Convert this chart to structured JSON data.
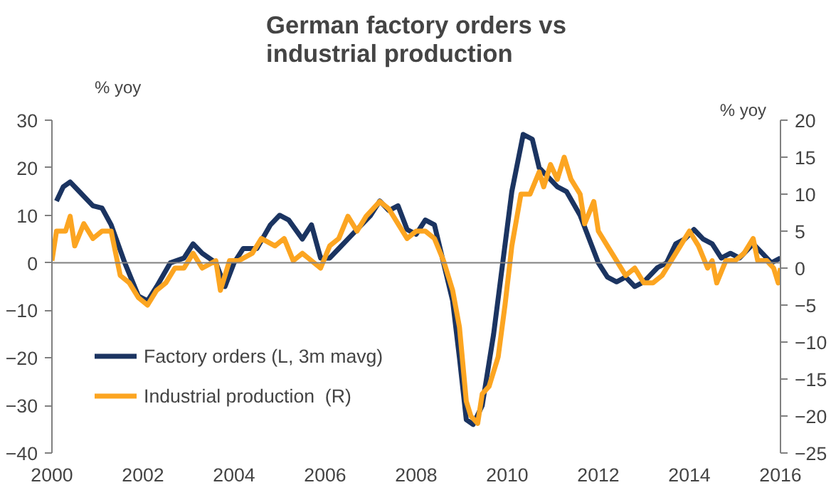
{
  "chart_data": {
    "type": "line",
    "title": "German factory orders vs\nindustrial production",
    "ylabel": "% yoy",
    "y2label": "% yoy",
    "xlim": [
      2000,
      2016
    ],
    "xticks": [
      2000,
      2002,
      2004,
      2006,
      2008,
      2010,
      2012,
      2014,
      2016
    ],
    "ylim": [
      -40,
      30
    ],
    "yticks": [
      -40,
      -30,
      -20,
      -10,
      0,
      10,
      20,
      30
    ],
    "y2lim": [
      -25,
      20
    ],
    "y2ticks": [
      -25,
      -20,
      -15,
      -10,
      -5,
      0,
      5,
      10,
      15,
      20
    ],
    "grid": false,
    "legend": "bottom left",
    "line_style": "solid",
    "marker": "none",
    "ref_lines": [
      {
        "axis": "y",
        "value": 0,
        "color": "#808080"
      }
    ],
    "series": [
      {
        "name": "Factory orders (L, 3m mavg)",
        "color": "#1b3461",
        "x": [
          2000.1,
          2000.25,
          2000.4,
          2000.6,
          2000.9,
          2001.1,
          2001.3,
          2001.6,
          2001.9,
          2002.1,
          2002.3,
          2002.6,
          2002.9,
          2003.1,
          2003.3,
          2003.6,
          2003.8,
          2004.0,
          2004.2,
          2004.5,
          2004.8,
          2005.0,
          2005.2,
          2005.5,
          2005.7,
          2005.9,
          2006.1,
          2006.3,
          2006.5,
          2006.8,
          2007.0,
          2007.2,
          2007.4,
          2007.6,
          2007.8,
          2008.0,
          2008.2,
          2008.4,
          2008.6,
          2008.8,
          2008.95,
          2009.1,
          2009.25,
          2009.45,
          2009.7,
          2009.9,
          2010.1,
          2010.35,
          2010.55,
          2010.7,
          2010.9,
          2011.1,
          2011.3,
          2011.6,
          2011.8,
          2012.0,
          2012.2,
          2012.4,
          2012.6,
          2012.8,
          2013.0,
          2013.3,
          2013.5,
          2013.7,
          2013.9,
          2014.1,
          2014.3,
          2014.5,
          2014.7,
          2014.9,
          2015.1,
          2015.4,
          2015.6,
          2015.8,
          2016.0
        ],
        "values": [
          13,
          16,
          17,
          15,
          12,
          11.5,
          8,
          0,
          -7,
          -8,
          -5,
          0,
          1,
          4,
          2,
          0,
          -5,
          0,
          3,
          3,
          8,
          10,
          9,
          5,
          8,
          1,
          1,
          3,
          5,
          8,
          10,
          13,
          11,
          12,
          7,
          6,
          9,
          8,
          0,
          -8,
          -20,
          -33,
          -34,
          -30,
          -15,
          0,
          15,
          27,
          26,
          20,
          18,
          16,
          15,
          10,
          5,
          0,
          -3,
          -4,
          -3,
          -5,
          -4,
          -1,
          0,
          4,
          5,
          7,
          5,
          4,
          1,
          2,
          1,
          4,
          2,
          0,
          1
        ]
      },
      {
        "name": "Industrial production  (R)",
        "color": "#fca521",
        "axis": "y2",
        "x": [
          2000.0,
          2000.1,
          2000.3,
          2000.4,
          2000.5,
          2000.7,
          2000.9,
          2001.1,
          2001.3,
          2001.5,
          2001.7,
          2001.9,
          2002.1,
          2002.3,
          2002.5,
          2002.7,
          2002.9,
          2003.1,
          2003.3,
          2003.6,
          2003.7,
          2003.9,
          2004.1,
          2004.4,
          2004.6,
          2004.9,
          2005.1,
          2005.3,
          2005.5,
          2005.7,
          2005.9,
          2006.1,
          2006.3,
          2006.5,
          2006.7,
          2006.9,
          2007.2,
          2007.4,
          2007.6,
          2007.8,
          2008.0,
          2008.2,
          2008.4,
          2008.6,
          2008.8,
          2008.95,
          2009.1,
          2009.2,
          2009.35,
          2009.45,
          2009.6,
          2009.8,
          2009.95,
          2010.1,
          2010.3,
          2010.5,
          2010.7,
          2010.8,
          2010.95,
          2011.1,
          2011.25,
          2011.4,
          2011.6,
          2011.7,
          2011.9,
          2012.0,
          2012.2,
          2012.4,
          2012.6,
          2012.8,
          2013.0,
          2013.2,
          2013.4,
          2013.6,
          2013.8,
          2013.9,
          2014.0,
          2014.2,
          2014.4,
          2014.5,
          2014.6,
          2014.8,
          2015.0,
          2015.2,
          2015.4,
          2015.5,
          2015.7,
          2015.85,
          2015.95,
          2016.0
        ],
        "values": [
          1,
          5,
          5,
          7,
          3,
          6,
          4,
          5,
          5,
          -1,
          -2,
          -4,
          -5,
          -3,
          -2,
          0,
          0,
          2,
          0,
          1,
          -3,
          1,
          1,
          2,
          4,
          3,
          4,
          1,
          2,
          1,
          0,
          3,
          4,
          7,
          5,
          7,
          9,
          8,
          6,
          4,
          5,
          5,
          4,
          1,
          -3,
          -8,
          -18,
          -20,
          -21,
          -17,
          -16,
          -12,
          -5,
          3,
          10,
          10,
          13,
          11,
          14,
          12,
          15,
          12,
          10,
          6,
          9,
          5,
          3,
          1,
          -1,
          0,
          -2,
          -2,
          -1,
          1,
          3,
          4,
          5,
          3,
          0,
          1,
          -2,
          1,
          1,
          2,
          4,
          1,
          1,
          0,
          -2,
          0
        ]
      }
    ]
  }
}
